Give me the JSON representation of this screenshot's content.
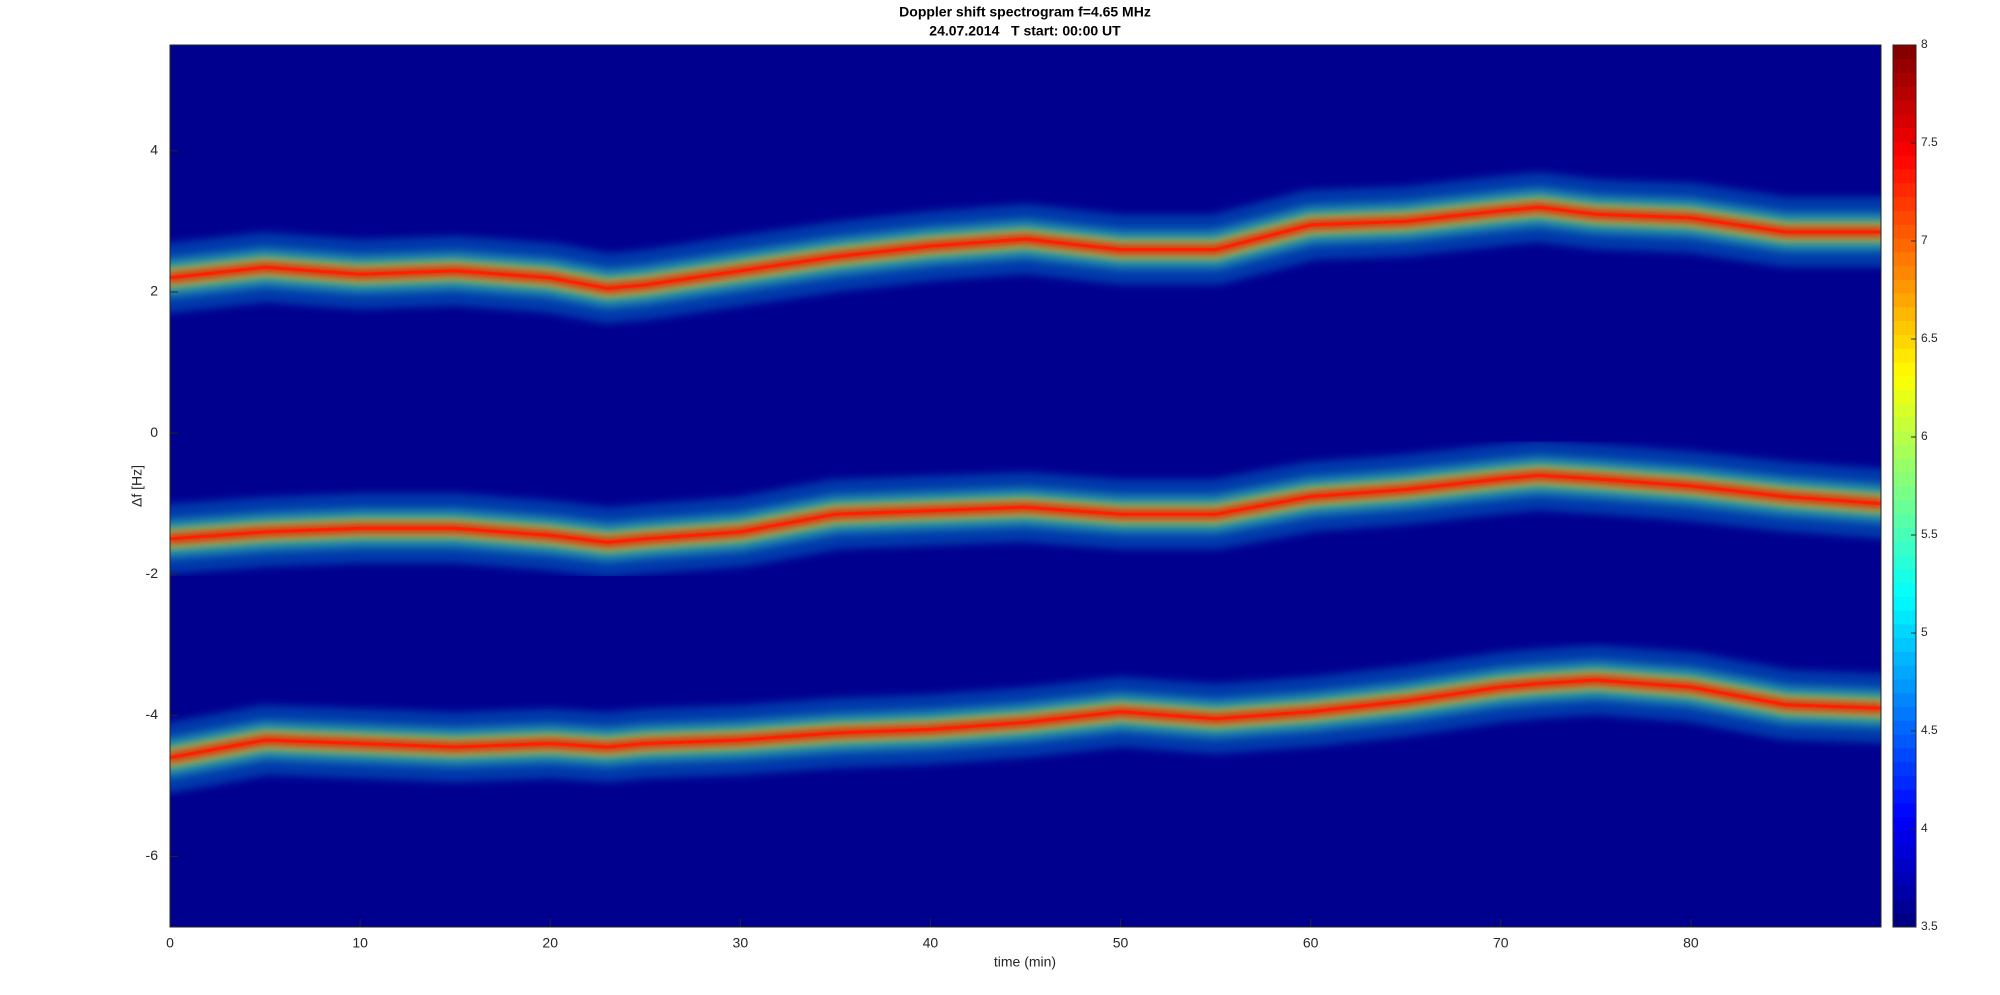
{
  "chart_data": {
    "type": "spectrogram",
    "title": "Doppler shift spectrogram f=4.65 MHz",
    "subtitle": "24.07.2014   T start: 00:00 UT",
    "x_label": "time (min)",
    "y_label": "Δf [Hz]",
    "xlim": [
      0,
      90
    ],
    "xticks": [
      0,
      10,
      20,
      30,
      40,
      50,
      60,
      70,
      80
    ],
    "ylim": [
      -7,
      5.5
    ],
    "yticks": [
      -6,
      -4,
      -2,
      0,
      2,
      4
    ],
    "colormap": "jet",
    "clim": [
      3.5,
      8
    ],
    "cticks": [
      3.5,
      4,
      4.5,
      5,
      5.5,
      6,
      6.5,
      7,
      7.5,
      8
    ],
    "background": "#00008f",
    "x": [
      0,
      5,
      10,
      15,
      20,
      23,
      25,
      30,
      35,
      40,
      45,
      50,
      55,
      60,
      65,
      70,
      72,
      75,
      80,
      85,
      90
    ],
    "series": [
      {
        "color": "#ff2000",
        "values": [
          2.2,
          2.35,
          2.25,
          2.3,
          2.2,
          2.05,
          2.1,
          2.3,
          2.5,
          2.65,
          2.75,
          2.6,
          2.6,
          2.95,
          3.0,
          3.15,
          3.2,
          3.1,
          3.05,
          2.85,
          2.85
        ]
      },
      {
        "color": "#ff2000",
        "values": [
          -1.5,
          -1.4,
          -1.35,
          -1.35,
          -1.45,
          -1.55,
          -1.5,
          -1.4,
          -1.15,
          -1.1,
          -1.05,
          -1.15,
          -1.15,
          -0.9,
          -0.8,
          -0.65,
          -0.6,
          -0.65,
          -0.75,
          -0.9,
          -1.0
        ]
      },
      {
        "color": "#ff2000",
        "values": [
          -4.6,
          -4.35,
          -4.4,
          -4.45,
          -4.4,
          -4.45,
          -4.4,
          -4.35,
          -4.25,
          -4.2,
          -4.1,
          -3.95,
          -4.05,
          -3.95,
          -3.8,
          -3.6,
          -3.55,
          -3.5,
          -3.6,
          -3.85,
          -3.9
        ]
      }
    ]
  }
}
